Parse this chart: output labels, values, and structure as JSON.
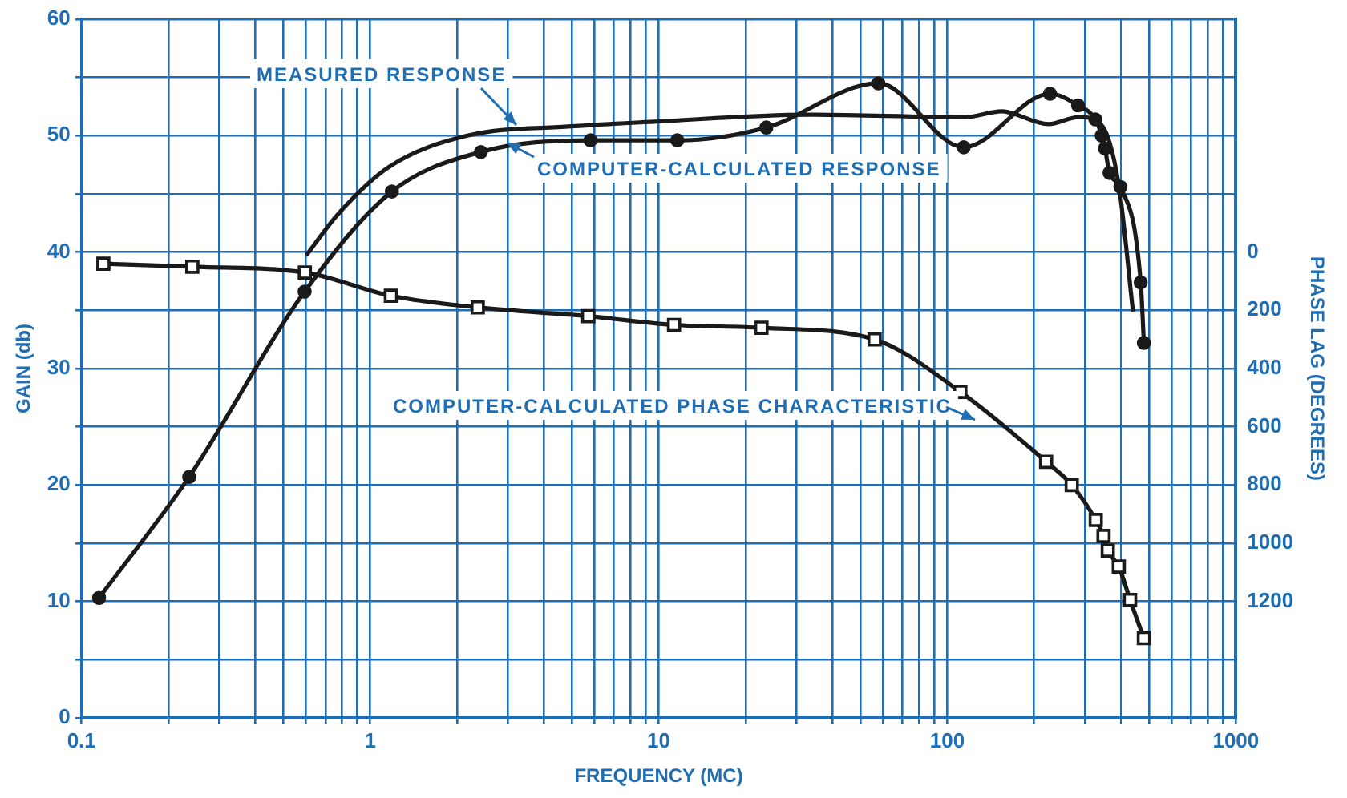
{
  "chart_data": {
    "type": "line",
    "xlabel": "FREQUENCY (MC)",
    "ylabel": "GAIN (db)",
    "y2label": "PHASE LAG (DEGREES)",
    "log": "x",
    "grid": true,
    "legend": false,
    "line_style": "solid",
    "xlim": [
      0.1,
      1000
    ],
    "xticks": [
      0.1,
      {
        "value": 0.2,
        "label": null
      },
      {
        "value": 0.3,
        "label": null
      },
      {
        "value": 0.4,
        "label": null
      },
      {
        "value": 0.5,
        "label": null
      },
      {
        "value": 0.6,
        "label": null
      },
      {
        "value": 0.7,
        "label": null
      },
      {
        "value": 0.8,
        "label": null
      },
      {
        "value": 0.9,
        "label": null
      },
      1,
      {
        "value": 2,
        "label": null
      },
      {
        "value": 3,
        "label": null
      },
      {
        "value": 4,
        "label": null
      },
      {
        "value": 5,
        "label": null
      },
      {
        "value": 6,
        "label": null
      },
      {
        "value": 7,
        "label": null
      },
      {
        "value": 8,
        "label": null
      },
      {
        "value": 9,
        "label": null
      },
      10,
      {
        "value": 20,
        "label": null
      },
      {
        "value": 30,
        "label": null
      },
      {
        "value": 40,
        "label": null
      },
      {
        "value": 50,
        "label": null
      },
      {
        "value": 60,
        "label": null
      },
      {
        "value": 70,
        "label": null
      },
      {
        "value": 80,
        "label": null
      },
      {
        "value": 90,
        "label": null
      },
      100,
      {
        "value": 200,
        "label": null
      },
      {
        "value": 300,
        "label": null
      },
      {
        "value": 400,
        "label": null
      },
      {
        "value": 500,
        "label": null
      },
      {
        "value": 600,
        "label": null
      },
      {
        "value": 700,
        "label": null
      },
      {
        "value": 800,
        "label": null
      },
      {
        "value": 900,
        "label": null
      },
      1000
    ],
    "ylim": [
      0,
      60
    ],
    "yticks": [
      0,
      {
        "value": 5,
        "label": null
      },
      10,
      {
        "value": 15,
        "label": null
      },
      20,
      {
        "value": 25,
        "label": null
      },
      30,
      {
        "value": 35,
        "label": null
      },
      40,
      {
        "value": 45,
        "label": null
      },
      50,
      {
        "value": 55,
        "label": null
      },
      60
    ],
    "y2lim": [
      1600,
      -800
    ],
    "y2ticks": [
      0,
      200,
      400,
      600,
      800,
      1000,
      1200
    ],
    "series": [
      {
        "name": "MEASURED RESPONSE",
        "color": "#1a1a1a",
        "marker": "none",
        "x": [
          0.6,
          0.77,
          1.16,
          2.17,
          4.97,
          9.6,
          33,
          116,
          154,
          224,
          286,
          340,
          392,
          440
        ],
        "values": [
          39.7,
          43.2,
          47.3,
          50.0,
          50.8,
          51.2,
          51.8,
          51.6,
          52.1,
          51.0,
          51.6,
          51.0,
          45.9,
          34.9
        ]
      },
      {
        "name": "COMPUTER-CALCULATED RESPONSE",
        "color": "#1a1a1a",
        "marker": "circle",
        "x": [
          0.115,
          0.236,
          0.593,
          1.19,
          2.42,
          5.8,
          11.6,
          23.6,
          57.7,
          114,
          227,
          284,
          326,
          343,
          352,
          365,
          398,
          468,
          480
        ],
        "values": [
          10.3,
          20.7,
          36.6,
          45.2,
          48.6,
          49.6,
          49.6,
          50.7,
          54.5,
          49.0,
          53.6,
          52.6,
          51.4,
          50.0,
          48.9,
          46.8,
          45.6,
          37.4,
          32.2
        ]
      },
      {
        "name": "COMPUTER-CALCULATED PHASE CHARACTERISTIC",
        "color": "#1a1a1a",
        "marker": "square",
        "axis": "y2",
        "x": [
          0.119,
          0.242,
          0.594,
          1.18,
          2.36,
          5.7,
          11.3,
          22.7,
          56,
          111,
          220,
          270,
          327,
          348,
          360,
          393,
          430,
          480
        ],
        "values": [
          40,
          50,
          70,
          150,
          190,
          220,
          250,
          260,
          300,
          480,
          720,
          800,
          920,
          975,
          1025,
          1080,
          1195,
          1326
        ]
      }
    ]
  }
}
